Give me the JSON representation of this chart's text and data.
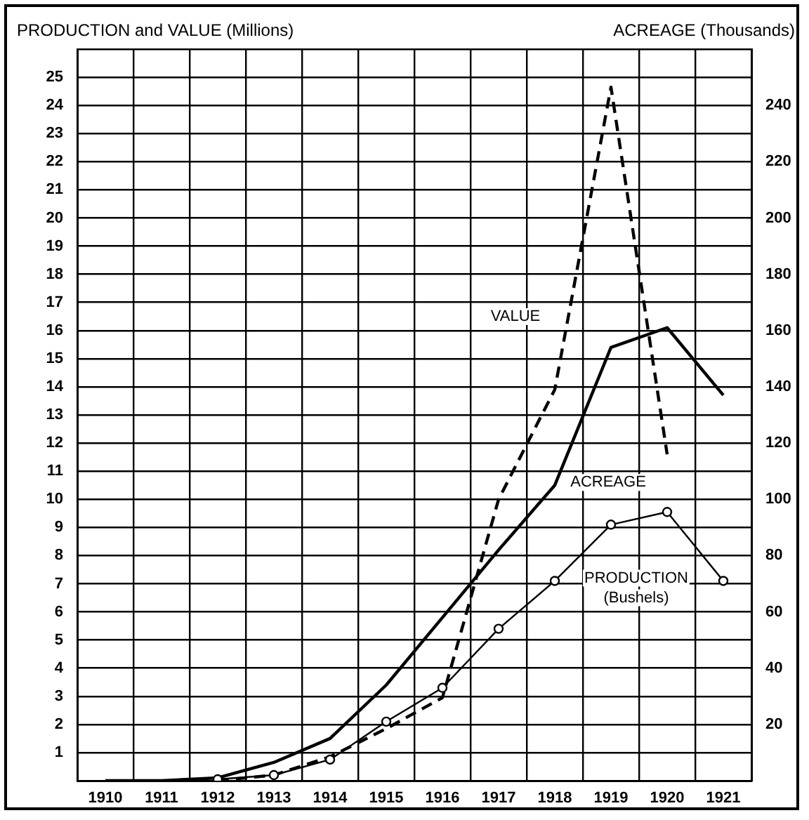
{
  "chart_data": {
    "type": "line",
    "ylabel": "PRODUCTION and VALUE (Millions)",
    "y2label": "ACREAGE (Thousands)",
    "categories": [
      "1910",
      "1911",
      "1912",
      "1913",
      "1914",
      "1915",
      "1916",
      "1917",
      "1918",
      "1919",
      "1920",
      "1921"
    ],
    "series": [
      {
        "name": "VALUE",
        "color": "#000000",
        "line_style": "dashed",
        "marker": "none",
        "values": [
          null,
          null,
          0,
          0.2,
          0.85,
          1.85,
          2.95,
          10,
          13.9,
          24.65,
          11.6,
          null
        ]
      },
      {
        "name": "ACREAGE",
        "color": "#000000",
        "line_style": "solid",
        "marker": "none",
        "axis": "y2",
        "values": [
          0,
          0,
          1,
          6.5,
          15,
          34,
          58,
          82,
          105,
          154,
          161,
          137
        ]
      },
      {
        "name": "PRODUCTION (Bushels)",
        "color": "#000000",
        "line_style": "solid",
        "marker": "circle",
        "values": [
          null,
          null,
          0.05,
          0.2,
          0.75,
          2.1,
          3.3,
          5.4,
          7.1,
          9.1,
          9.55,
          7.1
        ]
      }
    ],
    "ylim": [
      0,
      26
    ],
    "yticks": [
      {
        "value": 0,
        "label": null
      },
      1,
      2,
      3,
      4,
      5,
      6,
      7,
      8,
      9,
      10,
      11,
      12,
      13,
      14,
      15,
      16,
      17,
      18,
      19,
      20,
      21,
      22,
      23,
      24,
      25,
      {
        "value": 26,
        "label": null
      }
    ],
    "y2lim": [
      0,
      260
    ],
    "y2ticks": [
      20,
      40,
      60,
      80,
      100,
      120,
      140,
      160,
      180,
      200,
      220,
      240
    ],
    "grid": true,
    "legend": false
  }
}
